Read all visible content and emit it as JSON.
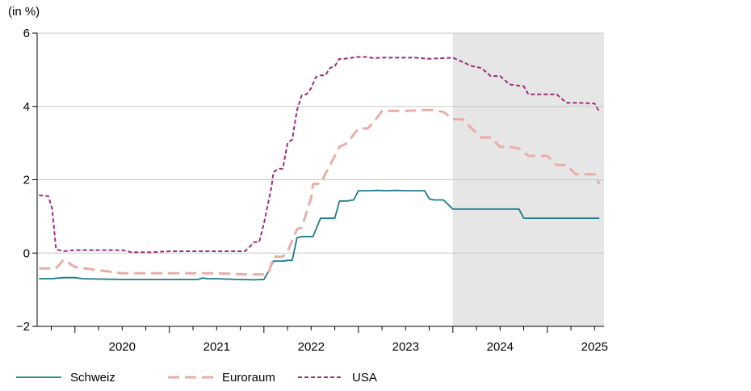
{
  "chart_data": {
    "type": "line",
    "title": "",
    "unit_label": "(in %)",
    "xlabel": "",
    "ylabel": "",
    "ylim": [
      -2,
      6
    ],
    "xlim": [
      2019.6,
      2025.6
    ],
    "y_ticks": [
      "−2",
      "0",
      "2",
      "4",
      "6"
    ],
    "x_tick_labels": [
      "2020",
      "2021",
      "2022",
      "2023",
      "2024",
      "2025"
    ],
    "grid": "horizontal",
    "legend_position": "bottom",
    "forecast_shading": {
      "from": 2024.0,
      "to": 2025.6,
      "color": "#e6e6e6"
    },
    "colors": {
      "Schweiz": "#1f7a8c",
      "Euroraum": "#e8aeaa",
      "USA": "#9b2c7a"
    },
    "series": [
      {
        "name": "Schweiz",
        "style": "solid",
        "x": [
          2019.62,
          2019.75,
          2019.88,
          2020.0,
          2020.08,
          2020.5,
          2021.0,
          2021.3,
          2021.35,
          2021.4,
          2021.5,
          2021.7,
          2021.9,
          2022.0,
          2022.06,
          2022.1,
          2022.2,
          2022.25,
          2022.3,
          2022.35,
          2022.4,
          2022.5,
          2022.52,
          2022.6,
          2022.65,
          2022.75,
          2022.8,
          2022.88,
          2022.95,
          2023.0,
          2023.1,
          2023.2,
          2023.3,
          2023.4,
          2023.5,
          2023.6,
          2023.7,
          2023.75,
          2023.8,
          2023.9,
          2024.0,
          2024.25,
          2024.5,
          2024.7,
          2024.75,
          2025.0,
          2025.25,
          2025.55
        ],
        "y": [
          -0.7,
          -0.7,
          -0.67,
          -0.67,
          -0.7,
          -0.72,
          -0.72,
          -0.72,
          -0.68,
          -0.7,
          -0.7,
          -0.72,
          -0.73,
          -0.72,
          -0.45,
          -0.22,
          -0.22,
          -0.2,
          -0.2,
          0.42,
          0.45,
          0.45,
          0.45,
          0.95,
          0.95,
          0.95,
          1.42,
          1.42,
          1.45,
          1.7,
          1.7,
          1.71,
          1.7,
          1.71,
          1.7,
          1.7,
          1.7,
          1.48,
          1.45,
          1.45,
          1.2,
          1.2,
          1.2,
          1.2,
          0.95,
          0.95,
          0.95,
          0.95
        ]
      },
      {
        "name": "Euroraum",
        "style": "dashed",
        "x": [
          2019.62,
          2019.7,
          2019.8,
          2019.88,
          2020.0,
          2020.2,
          2020.5,
          2021.0,
          2021.5,
          2021.8,
          2022.0,
          2022.05,
          2022.1,
          2022.2,
          2022.25,
          2022.35,
          2022.4,
          2022.5,
          2022.52,
          2022.6,
          2022.7,
          2022.8,
          2022.88,
          2023.0,
          2023.1,
          2023.2,
          2023.25,
          2023.5,
          2023.7,
          2023.8,
          2023.9,
          2024.0,
          2024.1,
          2024.2,
          2024.3,
          2024.4,
          2024.5,
          2024.6,
          2024.7,
          2024.8,
          2025.0,
          2025.1,
          2025.2,
          2025.3,
          2025.5,
          2025.55
        ],
        "y": [
          -0.42,
          -0.42,
          -0.42,
          -0.18,
          -0.38,
          -0.45,
          -0.55,
          -0.55,
          -0.55,
          -0.58,
          -0.58,
          -0.55,
          -0.1,
          -0.1,
          0.05,
          0.65,
          0.7,
          1.5,
          1.88,
          1.9,
          2.4,
          2.9,
          3.0,
          3.4,
          3.4,
          3.7,
          3.88,
          3.88,
          3.9,
          3.9,
          3.85,
          3.65,
          3.65,
          3.4,
          3.15,
          3.15,
          2.9,
          2.9,
          2.85,
          2.65,
          2.65,
          2.4,
          2.4,
          2.15,
          2.15,
          1.88
        ]
      },
      {
        "name": "USA",
        "style": "dotted",
        "x": [
          2019.62,
          2019.72,
          2019.76,
          2019.8,
          2019.88,
          2020.0,
          2020.5,
          2020.6,
          2020.8,
          2021.0,
          2021.5,
          2021.8,
          2021.9,
          2021.95,
          2022.0,
          2022.08,
          2022.1,
          2022.15,
          2022.2,
          2022.25,
          2022.3,
          2022.35,
          2022.4,
          2022.45,
          2022.5,
          2022.55,
          2022.6,
          2022.65,
          2022.7,
          2022.75,
          2022.8,
          2022.85,
          2022.9,
          2023.0,
          2023.1,
          2023.15,
          2023.25,
          2023.5,
          2023.6,
          2023.75,
          2024.0,
          2024.2,
          2024.3,
          2024.4,
          2024.5,
          2024.6,
          2024.75,
          2024.8,
          2025.0,
          2025.1,
          2025.2,
          2025.3,
          2025.5,
          2025.55
        ],
        "y": [
          1.58,
          1.55,
          1.2,
          0.1,
          0.05,
          0.08,
          0.08,
          0.02,
          0.02,
          0.05,
          0.05,
          0.05,
          0.3,
          0.3,
          0.8,
          1.8,
          2.2,
          2.3,
          2.3,
          3.0,
          3.1,
          3.9,
          4.3,
          4.33,
          4.5,
          4.8,
          4.85,
          4.85,
          5.05,
          5.1,
          5.3,
          5.3,
          5.32,
          5.35,
          5.35,
          5.32,
          5.33,
          5.33,
          5.33,
          5.3,
          5.33,
          5.1,
          5.05,
          4.83,
          4.83,
          4.6,
          4.55,
          4.33,
          4.33,
          4.33,
          4.1,
          4.1,
          4.08,
          3.85
        ]
      }
    ]
  }
}
